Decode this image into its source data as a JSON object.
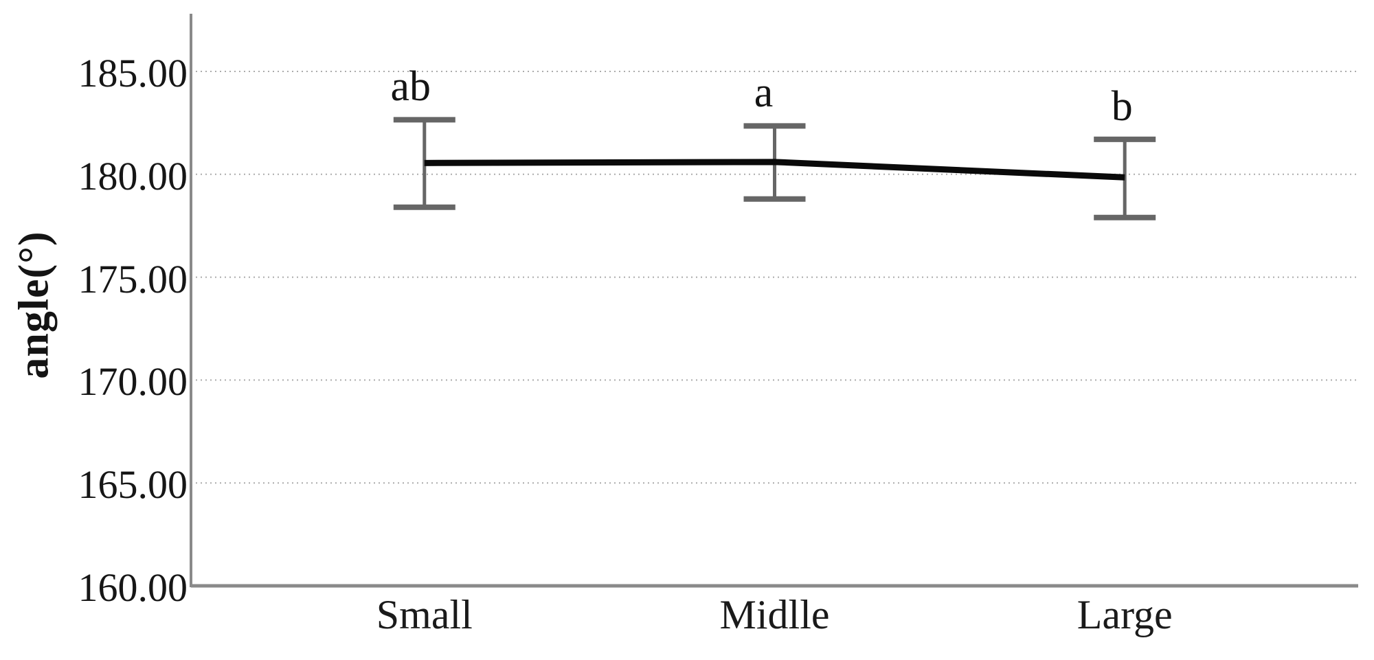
{
  "chart_data": {
    "type": "line",
    "title": "",
    "ylabel": "angle(°)",
    "xlabel": "",
    "categories": [
      "Small",
      "Midlle",
      "Large"
    ],
    "series": [
      {
        "name": "angle",
        "values": [
          180.55,
          180.6,
          179.85
        ]
      }
    ],
    "error_bars": {
      "upper": [
        182.65,
        182.35,
        181.7
      ],
      "lower": [
        178.4,
        178.8,
        177.9
      ]
    },
    "point_annotations": [
      "ab",
      "a",
      "b"
    ],
    "yticks": [
      "185.00",
      "180.00",
      "175.00",
      "170.00",
      "165.00",
      "160.00"
    ],
    "ytick_values": [
      185,
      180,
      175,
      170,
      165,
      160
    ],
    "ylim": [
      160,
      185
    ],
    "grid": "horizontal dotted gridlines, on",
    "legend": "none",
    "colors": {
      "line": "#0a0a0a",
      "error_bar": "#666666",
      "gridline": "#ababab",
      "axis": "#8a8a8a",
      "text": "#141414",
      "background": "#ffffff"
    }
  }
}
